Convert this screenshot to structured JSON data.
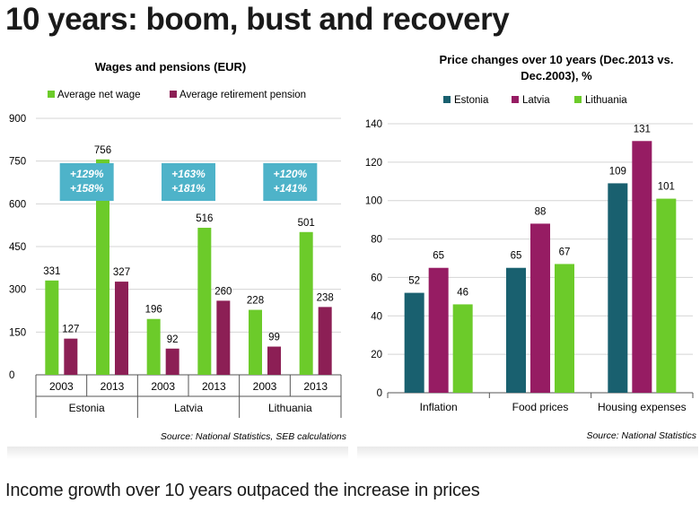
{
  "headline": "10 years: boom, bust and recovery",
  "caption": "Income growth over 10 years outpaced the increase in prices",
  "colors": {
    "wage": "#6ccb2a",
    "pension": "#8c1f55",
    "estonia": "#19606f",
    "latvia": "#961c63",
    "lithuania": "#6ccb2a",
    "badge": "#4eb3c9"
  },
  "chart_data": [
    {
      "type": "bar",
      "title": "Wages and pensions (EUR)",
      "source": "Source: National Statistics, SEB calculations",
      "legend_position": "top",
      "ylim": [
        0,
        900
      ],
      "yticks": [
        "0",
        "150",
        "300",
        "450",
        "600",
        "750",
        "900"
      ],
      "groups": [
        {
          "name": "Estonia",
          "badge": [
            "+129%",
            "+158%"
          ],
          "categories": [
            "2003",
            "2013"
          ]
        },
        {
          "name": "Latvia",
          "badge": [
            "+163%",
            "+181%"
          ],
          "categories": [
            "2003",
            "2013"
          ]
        },
        {
          "name": "Lithuania",
          "badge": [
            "+120%",
            "+141%"
          ],
          "categories": [
            "2003",
            "2013"
          ]
        }
      ],
      "series": [
        {
          "name": "Average net wage",
          "values": [
            331,
            756,
            196,
            516,
            228,
            501
          ]
        },
        {
          "name": "Average retirement pension",
          "values": [
            127,
            327,
            92,
            260,
            99,
            238
          ]
        }
      ]
    },
    {
      "type": "bar",
      "title": [
        "Price changes over 10 years (Dec.2013 vs.",
        "Dec.2003), %"
      ],
      "source": "Source: National Statistics",
      "legend_position": "top",
      "ylim": [
        0,
        140
      ],
      "yticks": [
        "0",
        "20",
        "40",
        "60",
        "80",
        "100",
        "120",
        "140"
      ],
      "categories": [
        "Inflation",
        "Food prices",
        "Housing expenses"
      ],
      "series": [
        {
          "name": "Estonia",
          "values": [
            52,
            65,
            109
          ]
        },
        {
          "name": "Latvia",
          "values": [
            65,
            88,
            131
          ]
        },
        {
          "name": "Lithuania",
          "values": [
            46,
            67,
            101
          ]
        }
      ]
    }
  ]
}
